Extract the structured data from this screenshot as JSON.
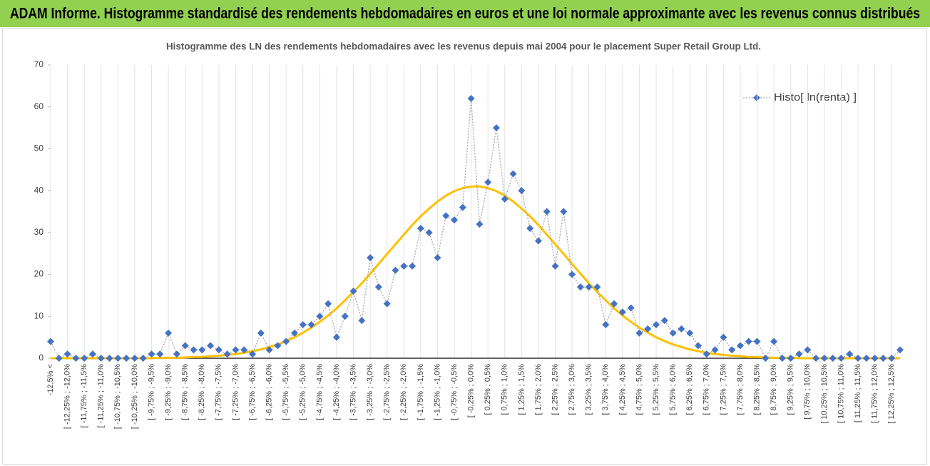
{
  "chart_data": {
    "type": "line",
    "header": "ADAM Informe. Histogramme standardisé des rendements hebdomadaires en euros et une loi normale approximante avec les revenus connus distribués",
    "title": "Histogramme des LN des rendements hebdomadaires avec les revenus depuis mai 2004 pour le placement Super Retail Group Ltd.",
    "categories": [
      "-12,5% <",
      null,
      "[ -12,25% ; -12,0%",
      null,
      "[ -11,75% ; -11,5%",
      null,
      "[ -11,25% ; -11,0%",
      null,
      "[ -10,75% ; -10,5%",
      null,
      "[ -10,25% ; -10,0%",
      null,
      "[ -9,75% ; -9,5%",
      null,
      "[ -9,25% ; -9,0%",
      null,
      "[ -8,75% ; -8,5%",
      null,
      "[ -8,25% ; -8,0%",
      null,
      "[ -7,75% ; -7,5%",
      null,
      "[ -7,25% ; -7,0%",
      null,
      "[ -6,75% ; -6,5%",
      null,
      "[ -6,25% ; -6,0%",
      null,
      "[ -5,75% ; -5,5%",
      null,
      "[ -5,25% ; -5,0%",
      null,
      "[ -4,75% ; -4,5%",
      null,
      "[ -4,25% ; -4,0%",
      null,
      "[ -3,75% ; -3,5%",
      null,
      "[ -3,25% ; -3,0%",
      null,
      "[ -2,75% ; -2,5%",
      null,
      "[ -2,25% ; -2,0%",
      null,
      "[ -1,75% ; -1,5%",
      null,
      "[ -1,25% ; -1,0%",
      null,
      "[ -0,75% ; -0,5%",
      null,
      "[ -0,25% ; 0,0%",
      null,
      "[ 0,25% ; 0,5%",
      null,
      "[ 0,75% ; 1,0%",
      null,
      "[ 1,25% ; 1,5%",
      null,
      "[ 1,75% ; 2,0%",
      null,
      "[ 2,25% ; 2,5%",
      null,
      "[ 2,75% ; 3,0%",
      null,
      "[ 3,25% ; 3,5%",
      null,
      "[ 3,75% ; 4,0%",
      null,
      "[ 4,25% ; 4,5%",
      null,
      "[ 4,75% ; 5,0%",
      null,
      "[ 5,25% ; 5,5%",
      null,
      "[ 5,75% ; 6,0%",
      null,
      "[ 6,25% ; 6,5%",
      null,
      "[ 6,75% ; 7,0%",
      null,
      "[ 7,25% ; 7,5%",
      null,
      "[ 7,75% ; 8,0%",
      null,
      "[ 8,25% ; 8,5%",
      null,
      "[ 8,75% ; 9,0%",
      null,
      "[ 9,25% ; 9,5%",
      null,
      "[ 9,75% ; 10,0%",
      null,
      "[ 10,25% ; 10,5%",
      null,
      "[ 10,75% ; 11,0%",
      null,
      "[ 11,25% ; 11,5%",
      null,
      "[ 11,75% ; 12,0%",
      null,
      "[ 12,25% ; 12,5%",
      null
    ],
    "series": [
      {
        "name": "Histo[ ln(renta) ]",
        "color": "#4472c4",
        "marker": "diamond",
        "line_color": "#a6a6a6",
        "dash": "dotted",
        "values": [
          4,
          0,
          1,
          0,
          0,
          1,
          0,
          0,
          0,
          0,
          0,
          0,
          1,
          1,
          6,
          1,
          3,
          2,
          2,
          3,
          2,
          1,
          2,
          2,
          1,
          6,
          2,
          3,
          4,
          6,
          8,
          8,
          10,
          13,
          5,
          10,
          16,
          9,
          24,
          17,
          13,
          21,
          22,
          22,
          31,
          30,
          24,
          34,
          33,
          36,
          62,
          32,
          42,
          55,
          38,
          44,
          40,
          31,
          28,
          35,
          22,
          35,
          20,
          17,
          17,
          17,
          8,
          13,
          11,
          12,
          6,
          7,
          8,
          9,
          6,
          7,
          6,
          3,
          1,
          2,
          5,
          2,
          3,
          4,
          4,
          0,
          4,
          0,
          0,
          1,
          2,
          0,
          0,
          0,
          0,
          1,
          0,
          0,
          0,
          0,
          0,
          2
        ]
      },
      {
        "color": "#ffc000",
        "marker": "none",
        "line_color": "#ffc000",
        "dash": "solid",
        "values": [
          0,
          0,
          0,
          0,
          0,
          0,
          0,
          0,
          0,
          0,
          0,
          0,
          0,
          0.1,
          0.1,
          0.1,
          0.2,
          0.3,
          0.3,
          0.5,
          0.6,
          0.8,
          1.0,
          1.3,
          1.7,
          2.1,
          2.7,
          3.3,
          4.1,
          5.0,
          6.1,
          7.3,
          8.7,
          10.2,
          11.9,
          13.8,
          15.8,
          17.9,
          20.2,
          22.5,
          24.9,
          27.2,
          29.5,
          31.8,
          33.9,
          35.7,
          37.4,
          38.8,
          39.9,
          40.6,
          41.0,
          41.0,
          40.6,
          39.9,
          38.8,
          37.4,
          35.7,
          33.9,
          31.8,
          29.5,
          27.2,
          24.9,
          22.5,
          20.2,
          17.9,
          15.8,
          13.8,
          11.9,
          10.2,
          8.7,
          7.3,
          6.1,
          5.0,
          4.1,
          3.3,
          2.7,
          2.1,
          1.7,
          1.3,
          1.0,
          0.8,
          0.6,
          0.5,
          0.3,
          0.3,
          0.2,
          0.1,
          0.1,
          0.1,
          0,
          0,
          0,
          0,
          0,
          0,
          0,
          0,
          0,
          0,
          0,
          0,
          0
        ]
      }
    ],
    "ylim": [
      0,
      70
    ],
    "yticks": [
      0,
      10,
      20,
      30,
      40,
      50,
      60,
      70
    ],
    "grid": "x",
    "legend": "upper right"
  }
}
